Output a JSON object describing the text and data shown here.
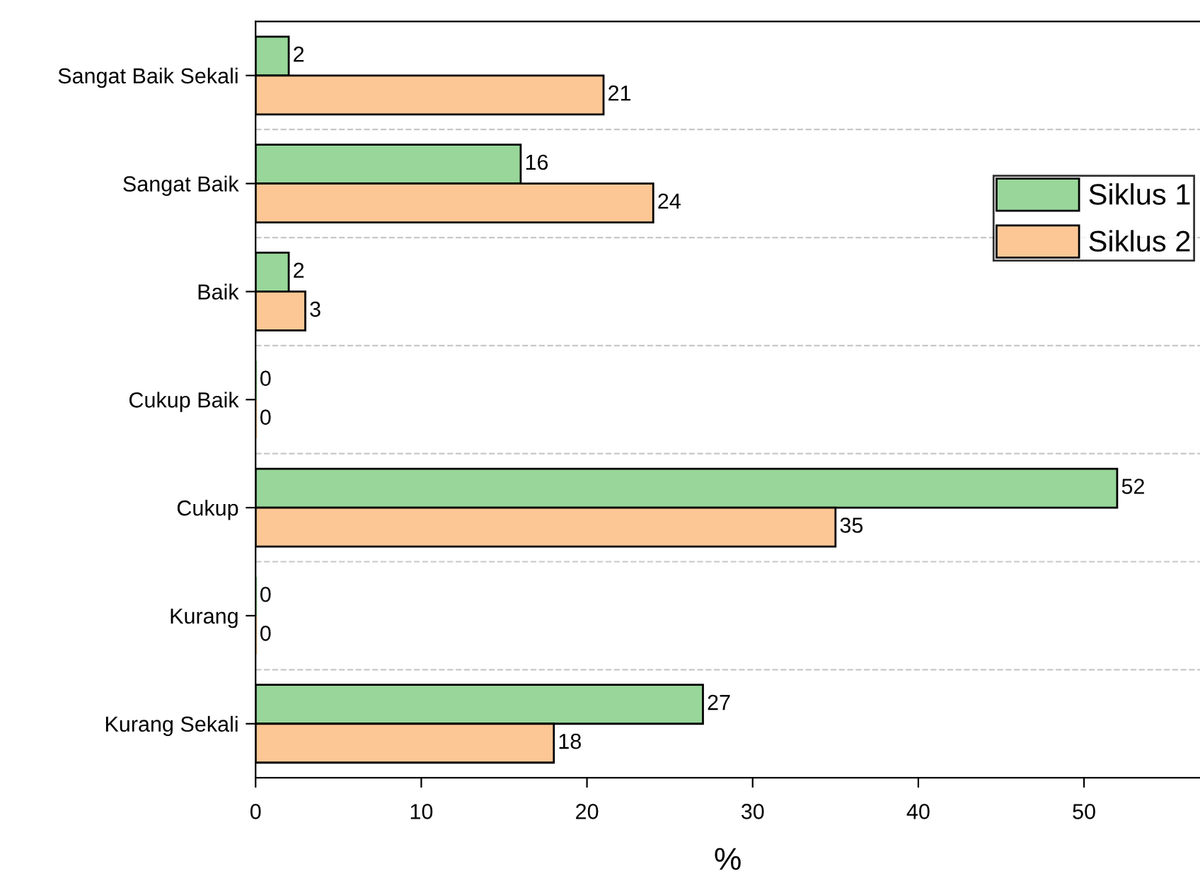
{
  "chart_data": {
    "type": "bar",
    "orientation": "horizontal",
    "xlabel": "%",
    "categories": [
      "Sangat Baik Sekali",
      "Sangat Baik",
      "Baik",
      "Cukup Baik",
      "Cukup",
      "Kurang",
      "Kurang Sekali"
    ],
    "series": [
      {
        "name": "Siklus 1",
        "color": "#98d69a",
        "values": [
          2,
          16,
          2,
          0,
          52,
          0,
          27
        ]
      },
      {
        "name": "Siklus 2",
        "color": "#fdc795",
        "values": [
          21,
          24,
          3,
          0,
          35,
          0,
          18
        ]
      }
    ],
    "xlim": [
      0,
      57
    ],
    "xticks": [
      0,
      10,
      20,
      30,
      40,
      50
    ],
    "data_labels": true,
    "grid": "y",
    "legend": "right"
  }
}
